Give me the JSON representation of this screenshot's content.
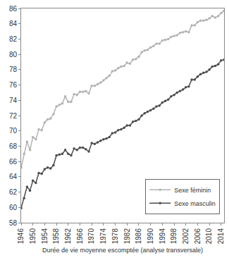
{
  "chart_data": {
    "type": "line",
    "x_label": "Durée de vie moyenne escomptée (analyse transversale)",
    "x": [
      1946,
      1947,
      1948,
      1949,
      1950,
      1951,
      1952,
      1953,
      1954,
      1955,
      1956,
      1957,
      1958,
      1959,
      1960,
      1961,
      1962,
      1963,
      1964,
      1965,
      1966,
      1967,
      1968,
      1969,
      1970,
      1971,
      1972,
      1973,
      1974,
      1975,
      1976,
      1977,
      1978,
      1979,
      1980,
      1981,
      1982,
      1983,
      1984,
      1985,
      1986,
      1987,
      1988,
      1989,
      1990,
      1991,
      1992,
      1993,
      1994,
      1995,
      1996,
      1997,
      1998,
      1999,
      2000,
      2001,
      2002,
      2003,
      2004,
      2005,
      2006,
      2007,
      2008,
      2009,
      2010,
      2011,
      2012,
      2013,
      2014,
      2015
    ],
    "series": [
      {
        "name": "Sexe féminin",
        "color": "#b3b3b3",
        "marker": "circle",
        "values": [
          65.2,
          67.0,
          68.6,
          67.5,
          69.2,
          68.9,
          70.2,
          70.1,
          71.1,
          71.5,
          71.6,
          72.2,
          73.2,
          73.4,
          73.6,
          74.5,
          73.8,
          73.8,
          74.8,
          74.7,
          75.1,
          75.1,
          75.2,
          74.9,
          75.9,
          75.9,
          76.1,
          76.3,
          76.6,
          76.9,
          77.2,
          77.8,
          77.9,
          78.2,
          78.4,
          78.5,
          78.9,
          78.8,
          79.3,
          79.4,
          79.7,
          80.3,
          80.5,
          80.6,
          80.9,
          81.1,
          81.4,
          81.4,
          81.8,
          81.9,
          82.0,
          82.3,
          82.4,
          82.5,
          82.8,
          82.9,
          83.0,
          82.9,
          83.8,
          83.8,
          84.2,
          84.4,
          84.4,
          84.5,
          84.7,
          85.0,
          84.8,
          85.0,
          85.4,
          85.7
        ]
      },
      {
        "name": "Sexe masculin",
        "color": "#4d4d4d",
        "marker": "circle",
        "values": [
          59.9,
          61.2,
          62.7,
          62.2,
          63.5,
          63.2,
          64.5,
          64.4,
          65.0,
          65.2,
          65.1,
          65.5,
          66.8,
          66.9,
          67.0,
          67.5,
          67.0,
          66.8,
          67.7,
          67.5,
          67.8,
          67.8,
          67.6,
          67.3,
          68.4,
          68.3,
          68.5,
          68.7,
          68.9,
          69.0,
          69.2,
          69.7,
          69.8,
          70.1,
          70.2,
          70.4,
          70.7,
          70.7,
          71.2,
          71.3,
          71.5,
          72.0,
          72.3,
          72.5,
          72.7,
          72.9,
          73.2,
          73.3,
          73.7,
          73.9,
          74.1,
          74.5,
          74.7,
          75.0,
          75.2,
          75.4,
          75.7,
          75.8,
          76.7,
          76.7,
          77.1,
          77.4,
          77.6,
          77.7,
          78.0,
          78.4,
          78.5,
          78.7,
          79.2,
          79.3
        ]
      }
    ],
    "xlim": [
      1946,
      2015
    ],
    "xticks": [
      1946,
      1950,
      1954,
      1958,
      1962,
      1966,
      1970,
      1974,
      1978,
      1982,
      1986,
      1990,
      1994,
      1998,
      2002,
      2006,
      2010,
      2014
    ],
    "ylim": [
      58,
      86
    ],
    "yticks": [
      58,
      60,
      62,
      64,
      66,
      68,
      70,
      72,
      74,
      76,
      78,
      80,
      82,
      84,
      86
    ],
    "grid": false,
    "legend": "lower right"
  }
}
